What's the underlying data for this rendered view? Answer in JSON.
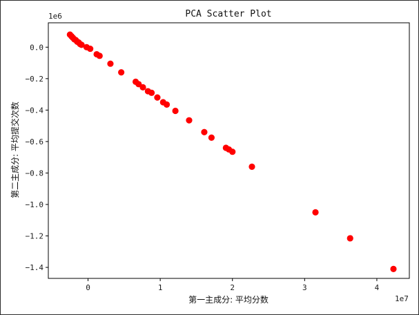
{
  "chart_data": {
    "type": "scatter",
    "title": "PCA Scatter Plot",
    "xlabel": "第一主成分: 平均分数",
    "ylabel": "第二主成分: 平均提交次数",
    "x_offset_text": "1e7",
    "y_offset_text": "1e6",
    "x_scale": 10000000,
    "y_scale": 1000000,
    "xlim": [
      -0.55,
      4.45
    ],
    "ylim": [
      -1.47,
      0.155
    ],
    "xticks": [
      0,
      1,
      2,
      3,
      4
    ],
    "xtick_labels": [
      "0",
      "1",
      "2",
      "3",
      "4"
    ],
    "yticks": [
      0.0,
      -0.2,
      -0.4,
      -0.6,
      -0.8,
      -1.0,
      -1.2,
      -1.4
    ],
    "ytick_labels": [
      "0.0",
      "−0.2",
      "−0.4",
      "−0.6",
      "−0.8",
      "−1.0",
      "−1.2",
      "−1.4"
    ],
    "grid": false,
    "legend": null,
    "marker_color": "#ff0000",
    "series": [
      {
        "x": [
          -0.25,
          -0.23,
          -0.21,
          -0.19,
          -0.17,
          -0.15,
          -0.13,
          -0.11,
          -0.09,
          -0.02,
          0.03,
          0.12,
          0.16,
          0.31,
          0.46,
          0.66,
          0.7,
          0.76,
          0.83,
          0.88,
          0.96,
          1.04,
          1.09,
          1.21,
          1.4,
          1.61,
          1.71,
          1.91,
          1.95,
          2.0,
          2.27,
          3.15,
          3.63,
          4.23
        ],
        "y": [
          0.08,
          0.07,
          0.06,
          0.05,
          0.045,
          0.035,
          0.03,
          0.02,
          0.015,
          0.0,
          -0.01,
          -0.045,
          -0.055,
          -0.105,
          -0.16,
          -0.22,
          -0.235,
          -0.255,
          -0.28,
          -0.29,
          -0.32,
          -0.35,
          -0.365,
          -0.405,
          -0.465,
          -0.54,
          -0.575,
          -0.64,
          -0.65,
          -0.665,
          -0.76,
          -1.05,
          -1.215,
          -1.41
        ]
      }
    ]
  }
}
